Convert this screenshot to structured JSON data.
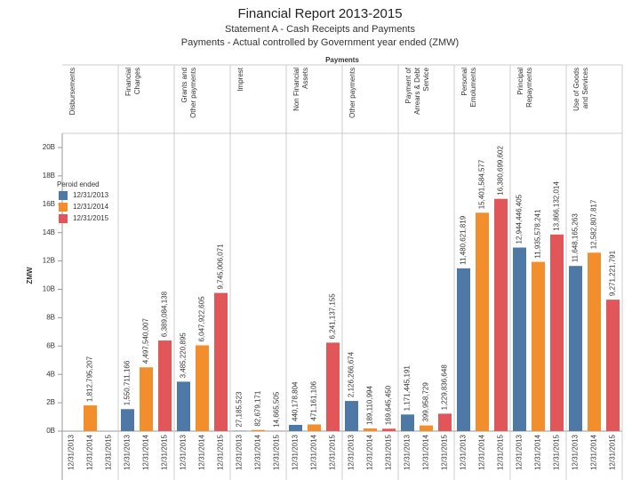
{
  "chart_data": {
    "type": "bar",
    "title": "Financial Report 2013-2015",
    "subtitle": [
      "Statement A - Cash Receipts and Payments",
      "Payments - Actual controlled by Government year ended (ZMW)"
    ],
    "column_header": "Payments",
    "ylabel": "ZMW",
    "legend_title": "Peroid ended",
    "facets": [
      [
        "Disbursements"
      ],
      [
        "Financial",
        "Charges"
      ],
      [
        "Grants and",
        "Other payments"
      ],
      [
        "Imprest"
      ],
      [
        "Non Financial",
        "Assets"
      ],
      [
        "Other payments"
      ],
      [
        "Payment of",
        "Arrears & Debt",
        "Service"
      ],
      [
        "Personal",
        "Emoluments"
      ],
      [
        "Principal",
        "Repayments"
      ],
      [
        "Use of Goods",
        "and Services"
      ]
    ],
    "series": [
      {
        "name": "12/31/2013",
        "color": "#4e79a7",
        "values": [
          null,
          1550711166,
          3485220895,
          27185523,
          440178804,
          2126266674,
          1171445191,
          11480621819,
          12944446405,
          11648165263
        ],
        "value_labels": [
          null,
          "1,550,711,166",
          "3,485,220,895",
          "27,185,523",
          "440,178,804",
          "2,126,266,674",
          "1,171,445,191",
          "11,480,621,819",
          "12,944,446,405",
          "11,648,165,263"
        ]
      },
      {
        "name": "12/31/2014",
        "color": "#f28e2b",
        "values": [
          1812795207,
          4497540007,
          6047922605,
          82679171,
          471161106,
          189110994,
          399958729,
          15401584577,
          11935578241,
          12582807817
        ],
        "value_labels": [
          "1,812,795,207",
          "4,497,540,007",
          "6,047,922,605",
          "82,679,171",
          "471,161,106",
          "189,110,994",
          "399,958,729",
          "15,401,584,577",
          "11,935,578,241",
          "12,582,807,817"
        ]
      },
      {
        "name": "12/31/2015",
        "color": "#e15759",
        "values": [
          null,
          6389084138,
          9745006071,
          14665505,
          6241137155,
          169645450,
          1229836648,
          16380699602,
          13866132014,
          9271221791
        ],
        "value_labels": [
          null,
          "6,389,084,138",
          "9,745,006,071",
          "14,665,505",
          "6,241,137,155",
          "169,645,450",
          "1,229,836,648",
          "16,380,699,602",
          "13,866,132,014",
          "9,271,221,791"
        ]
      }
    ],
    "ylim": [
      0,
      21000000000
    ],
    "yticks": [
      {
        "value": 0,
        "label": "0B"
      },
      {
        "value": 2000000000,
        "label": "2B"
      },
      {
        "value": 4000000000,
        "label": "4B"
      },
      {
        "value": 6000000000,
        "label": "6B"
      },
      {
        "value": 8000000000,
        "label": "8B"
      },
      {
        "value": 10000000000,
        "label": "10B"
      },
      {
        "value": 12000000000,
        "label": "12B"
      },
      {
        "value": 14000000000,
        "label": "14B"
      },
      {
        "value": 16000000000,
        "label": "16B"
      },
      {
        "value": 18000000000,
        "label": "18B"
      },
      {
        "value": 20000000000,
        "label": "20B"
      }
    ]
  }
}
